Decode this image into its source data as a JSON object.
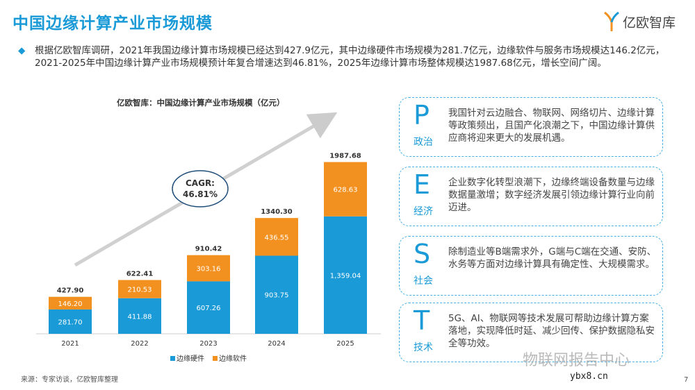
{
  "header": {
    "title": "中国边缘计算产业市场规模",
    "logo_text": "亿欧智库"
  },
  "intro": "根据亿欧智库调研，2021年我国边缘计算市场规模已经达到427.9亿元，其中边缘硬件市场规模为281.7亿元，边缘软件与服务市场规模达146.2亿元，2021-2025年中国边缘计算产业市场规模预计年复合增速达到46.81%，2025年边缘计算市场整体规模达1987.68亿元，增长空间广阔。",
  "chart_data": {
    "type": "bar",
    "stacked": true,
    "title": "亿欧智库：中国边缘计算产业市场规模（亿元）",
    "categories": [
      "2021",
      "2022",
      "2023",
      "2024",
      "2025"
    ],
    "series": [
      {
        "name": "边缘硬件",
        "color": "#1a9ad6",
        "values": [
          281.7,
          411.88,
          607.26,
          903.75,
          1359.04
        ],
        "labels": [
          "281.70",
          "411.88",
          "607.26",
          "903.75",
          "1,359.04"
        ]
      },
      {
        "name": "边缘软件",
        "color": "#f39120",
        "values": [
          146.2,
          210.53,
          303.16,
          436.55,
          628.63
        ],
        "labels": [
          "146.20",
          "210.53",
          "303.16",
          "436.55",
          "628.63"
        ]
      }
    ],
    "totals": [
      "427.90",
      "622.41",
      "910.42",
      "1340.30",
      "1987.68"
    ],
    "annotation": {
      "label": "CAGR:",
      "value": "46.81%"
    },
    "ylim": [
      0,
      2100
    ],
    "legend": "bottom"
  },
  "cards": [
    {
      "letter": "P",
      "label": "政治",
      "text": "我国针对云边融合、物联网、网络切片、边缘计算等政策频出，且国产化浪潮之下，中国边缘计算供应商将迎来更大的发展机遇。"
    },
    {
      "letter": "E",
      "label": "经济",
      "text": "企业数字化转型浪潮下，边缘终端设备数量与边缘数据量激增；数字经济发展引领边缘计算行业向前迈进。"
    },
    {
      "letter": "S",
      "label": "社会",
      "text": "除制造业等B端需求外，G端与C端在交通、安防、水务等方面对边缘计算具有确定性、大规模需求。"
    },
    {
      "letter": "T",
      "label": "技术",
      "text": "5G、AI、物联网等技术发展可帮助边缘计算方案落地，实现降低时延、减少回传、保护数据隐私安全等功效。"
    }
  ],
  "footer": {
    "source": "来源：专家访谈，亿欧智库整理",
    "page": "7"
  },
  "watermark": {
    "text": "物联网报告中心",
    "url": "ybx8.cn"
  }
}
